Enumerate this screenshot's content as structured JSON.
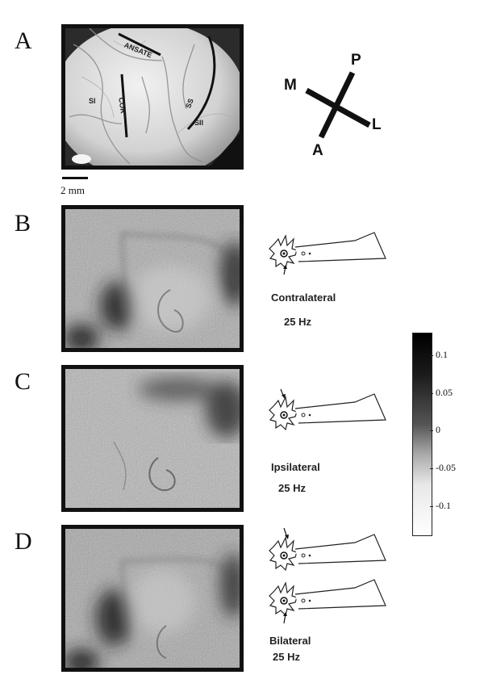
{
  "panels": {
    "A": {
      "letter": "A",
      "brain_labels": {
        "ansate": "ANSATE",
        "si": "SI",
        "cor": "COR",
        "ss": "SS",
        "sii": "SII"
      },
      "orientation": {
        "p": "P",
        "m": "M",
        "l": "L",
        "a": "A"
      },
      "scale_bar": "2 mm"
    },
    "B": {
      "letter": "B",
      "condition": "Contralateral",
      "frequency": "25 Hz",
      "arrows": [
        "below"
      ]
    },
    "C": {
      "letter": "C",
      "condition": "Ipsilateral",
      "frequency": "25 Hz",
      "arrows": [
        "above"
      ]
    },
    "D": {
      "letter": "D",
      "condition": "Bilateral",
      "frequency": "25 Hz",
      "arrows": [
        "above",
        "below"
      ]
    }
  },
  "colorbar": {
    "ticks": [
      "0.1",
      "0.05",
      "0",
      "-0.05",
      "-0.1"
    ],
    "tick_values": [
      0.1,
      0.05,
      0,
      -0.05,
      -0.1
    ],
    "range": [
      -0.14,
      0.13
    ],
    "colormap": "black-to-white"
  }
}
